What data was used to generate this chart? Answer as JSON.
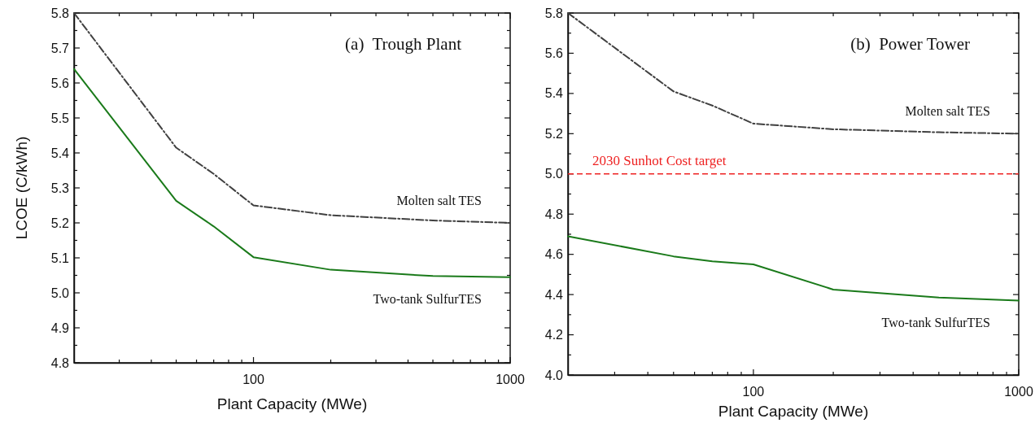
{
  "chart_data": [
    {
      "type": "line",
      "title": "(a)  Trough Plant",
      "xlabel": "Plant Capacity (MWe)",
      "ylabel": "LCOE (C/kWh)",
      "log": "x",
      "x": [
        20,
        50,
        70,
        100,
        200,
        500,
        1000
      ],
      "series": [
        {
          "name": "Molten salt TES",
          "color": "#404040",
          "line_style": "dashdot",
          "values": [
            5.8,
            5.415,
            5.34,
            5.25,
            5.222,
            5.207,
            5.2
          ]
        },
        {
          "name": "Two-tank SulfurTES",
          "color": "#1a7a1a",
          "line_style": "solid",
          "values": [
            5.64,
            5.263,
            5.19,
            5.102,
            5.066,
            5.048,
            5.045
          ]
        }
      ],
      "xlim": [
        20,
        1000
      ],
      "xticks": [
        {
          "value": 30,
          "label": null
        },
        {
          "value": 40,
          "label": null
        },
        {
          "value": 50,
          "label": null
        },
        {
          "value": 60,
          "label": null
        },
        {
          "value": 70,
          "label": null
        },
        {
          "value": 80,
          "label": null
        },
        {
          "value": 90,
          "label": null
        },
        {
          "value": 100,
          "label": "100"
        },
        {
          "value": 200,
          "label": null
        },
        {
          "value": 300,
          "label": null
        },
        {
          "value": 400,
          "label": null
        },
        {
          "value": 500,
          "label": null
        },
        {
          "value": 600,
          "label": null
        },
        {
          "value": 700,
          "label": null
        },
        {
          "value": 800,
          "label": null
        },
        {
          "value": 900,
          "label": null
        },
        {
          "value": 1000,
          "label": "1000"
        }
      ],
      "ylim": [
        4.8,
        5.8
      ],
      "yticks": [
        {
          "value": 4.8,
          "label": "4.8"
        },
        {
          "value": 4.85,
          "label": null
        },
        {
          "value": 4.9,
          "label": "4.9"
        },
        {
          "value": 4.95,
          "label": null
        },
        {
          "value": 5.0,
          "label": "5.0"
        },
        {
          "value": 5.05,
          "label": null
        },
        {
          "value": 5.1,
          "label": "5.1"
        },
        {
          "value": 5.15,
          "label": null
        },
        {
          "value": 5.2,
          "label": "5.2"
        },
        {
          "value": 5.25,
          "label": null
        },
        {
          "value": 5.3,
          "label": "5.3"
        },
        {
          "value": 5.35,
          "label": null
        },
        {
          "value": 5.4,
          "label": "5.4"
        },
        {
          "value": 5.45,
          "label": null
        },
        {
          "value": 5.5,
          "label": "5.5"
        },
        {
          "value": 5.55,
          "label": null
        },
        {
          "value": 5.6,
          "label": "5.6"
        },
        {
          "value": 5.65,
          "label": null
        },
        {
          "value": 5.7,
          "label": "5.7"
        },
        {
          "value": 5.75,
          "label": null
        },
        {
          "value": 5.8,
          "label": "5.8"
        }
      ],
      "grid": false,
      "legend": false
    },
    {
      "type": "line",
      "title": "(b)  Power Tower",
      "xlabel": "Plant Capacity (MWe)",
      "log": "x",
      "x": [
        20,
        50,
        70,
        100,
        200,
        500,
        1000
      ],
      "series": [
        {
          "name": "Molten salt TES",
          "color": "#404040",
          "line_style": "dashdot",
          "values": [
            5.8,
            5.41,
            5.34,
            5.25,
            5.222,
            5.207,
            5.2
          ]
        },
        {
          "name": "Two-tank SulfurTES",
          "color": "#1a7a1a",
          "line_style": "solid",
          "values": [
            4.69,
            4.59,
            4.565,
            4.55,
            4.425,
            4.385,
            4.37
          ]
        }
      ],
      "xlim": [
        20,
        1000
      ],
      "xticks": [
        {
          "value": 30,
          "label": null
        },
        {
          "value": 40,
          "label": null
        },
        {
          "value": 50,
          "label": null
        },
        {
          "value": 60,
          "label": null
        },
        {
          "value": 70,
          "label": null
        },
        {
          "value": 80,
          "label": null
        },
        {
          "value": 90,
          "label": null
        },
        {
          "value": 100,
          "label": "100"
        },
        {
          "value": 200,
          "label": null
        },
        {
          "value": 300,
          "label": null
        },
        {
          "value": 400,
          "label": null
        },
        {
          "value": 500,
          "label": null
        },
        {
          "value": 600,
          "label": null
        },
        {
          "value": 700,
          "label": null
        },
        {
          "value": 800,
          "label": null
        },
        {
          "value": 900,
          "label": null
        },
        {
          "value": 1000,
          "label": "1000"
        }
      ],
      "ylim": [
        4.0,
        5.8
      ],
      "yticks": [
        {
          "value": 4.0,
          "label": "4.0"
        },
        {
          "value": 4.1,
          "label": null
        },
        {
          "value": 4.2,
          "label": "4.2"
        },
        {
          "value": 4.3,
          "label": null
        },
        {
          "value": 4.4,
          "label": "4.4"
        },
        {
          "value": 4.5,
          "label": null
        },
        {
          "value": 4.6,
          "label": "4.6"
        },
        {
          "value": 4.7,
          "label": null
        },
        {
          "value": 4.8,
          "label": "4.8"
        },
        {
          "value": 4.9,
          "label": null
        },
        {
          "value": 5.0,
          "label": "5.0"
        },
        {
          "value": 5.1,
          "label": null
        },
        {
          "value": 5.2,
          "label": "5.2"
        },
        {
          "value": 5.3,
          "label": null
        },
        {
          "value": 5.4,
          "label": "5.4"
        },
        {
          "value": 5.5,
          "label": null
        },
        {
          "value": 5.6,
          "label": "5.6"
        },
        {
          "value": 5.7,
          "label": null
        },
        {
          "value": 5.8,
          "label": "5.8"
        }
      ],
      "ref_lines": [
        {
          "axis": "y",
          "value": 5.0,
          "label": "2030 Sunhot Cost target",
          "color": "#ee2222",
          "line_style": "dashed"
        }
      ],
      "grid": false,
      "legend": false
    }
  ]
}
